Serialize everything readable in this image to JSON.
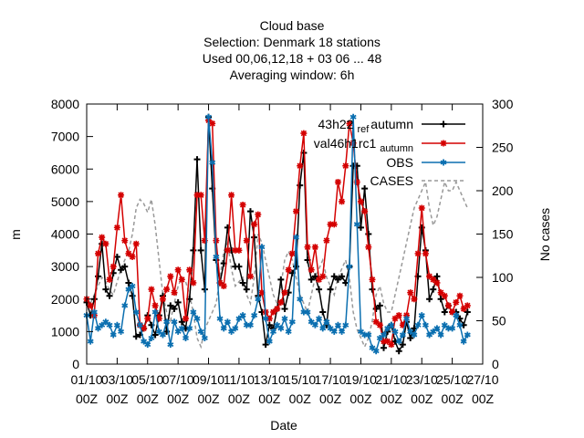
{
  "chart_data": {
    "type": "line",
    "title_lines": [
      "Cloud base",
      "Selection: Denmark      18 stations",
      "Used  00,06,12,18  + 03 06 ... 48",
      "Averaging window:  6h"
    ],
    "xlabel": "Date",
    "ylabel": "m",
    "y2label": "No cases",
    "xlim": [
      0,
      26
    ],
    "ylim": [
      0,
      8000
    ],
    "y2lim": [
      0,
      300
    ],
    "x_ticks": [
      {
        "x": 0,
        "l1": "01/10",
        "l2": "00Z"
      },
      {
        "x": 2,
        "l1": "03/10",
        "l2": "00Z"
      },
      {
        "x": 4,
        "l1": "05/10",
        "l2": "00Z"
      },
      {
        "x": 6,
        "l1": "07/10",
        "l2": "00Z"
      },
      {
        "x": 8,
        "l1": "09/10",
        "l2": "00Z"
      },
      {
        "x": 10,
        "l1": "11/10",
        "l2": "00Z"
      },
      {
        "x": 12,
        "l1": "13/10",
        "l2": "00Z"
      },
      {
        "x": 14,
        "l1": "15/10",
        "l2": "00Z"
      },
      {
        "x": 16,
        "l1": "17/10",
        "l2": "00Z"
      },
      {
        "x": 18,
        "l1": "19/10",
        "l2": "00Z"
      },
      {
        "x": 20,
        "l1": "21/10",
        "l2": "00Z"
      },
      {
        "x": 22,
        "l1": "23/10",
        "l2": "00Z"
      },
      {
        "x": 24,
        "l1": "25/10",
        "l2": "00Z"
      },
      {
        "x": 26,
        "l1": "27/10",
        "l2": "00Z"
      }
    ],
    "y_ticks": [
      0,
      1000,
      2000,
      3000,
      4000,
      5000,
      6000,
      7000,
      8000
    ],
    "y2_ticks": [
      0,
      50,
      100,
      150,
      200,
      250,
      300
    ],
    "legend_position": "top-right",
    "series": [
      {
        "name": "43h22_ref_autumn",
        "legend_main": "43h22",
        "legend_sub": "ref",
        "legend_tail": "autumn",
        "color": "#000000",
        "marker": "plus",
        "axis": "y",
        "x": [
          0.0,
          0.25,
          0.5,
          0.75,
          1.0,
          1.25,
          1.5,
          1.75,
          2.0,
          2.25,
          2.5,
          2.75,
          3.0,
          3.25,
          3.5,
          3.75,
          4.0,
          4.25,
          4.5,
          4.75,
          5.0,
          5.25,
          5.5,
          5.75,
          6.0,
          6.25,
          6.5,
          6.75,
          7.0,
          7.25,
          7.5,
          7.75,
          8.0,
          8.25,
          8.5,
          8.75,
          9.0,
          9.25,
          9.5,
          9.75,
          10.0,
          10.25,
          10.5,
          10.75,
          11.0,
          11.25,
          11.5,
          11.75,
          12.0,
          12.25,
          12.5,
          12.75,
          13.0,
          13.25,
          13.5,
          13.75,
          14.0,
          14.25,
          14.5,
          14.75,
          15.0,
          15.25,
          15.5,
          15.75,
          16.0,
          16.25,
          16.5,
          16.75,
          17.0,
          17.25,
          17.5,
          17.75,
          18.0,
          18.25,
          18.5,
          18.75,
          19.0,
          19.25,
          19.5,
          19.75,
          20.0,
          20.25,
          20.5,
          20.75,
          21.0,
          21.25,
          21.5,
          21.75,
          22.0,
          22.25,
          22.5,
          22.75,
          23.0,
          23.25,
          23.5,
          23.75,
          24.0,
          24.25,
          24.5,
          24.75,
          25.0
        ],
        "y": [
          1900,
          1500,
          2000,
          2700,
          3700,
          2300,
          2100,
          2800,
          3300,
          2900,
          3000,
          2500,
          2100,
          850,
          900,
          1100,
          1500,
          1200,
          900,
          1500,
          2100,
          1000,
          1800,
          1700,
          1900,
          1300,
          1100,
          2000,
          3500,
          6300,
          3500,
          2300,
          7600,
          5400,
          3200,
          2500,
          3100,
          4200,
          3500,
          3000,
          3000,
          2500,
          2300,
          4700,
          3900,
          2100,
          1600,
          600,
          1200,
          1100,
          1700,
          2600,
          1700,
          2200,
          2800,
          3000,
          5500,
          6500,
          3200,
          2600,
          2700,
          2300,
          1600,
          1200,
          2300,
          2700,
          2600,
          2700,
          2500,
          3000,
          6100,
          6100,
          4200,
          5400,
          4000,
          2300,
          1700,
          1800,
          500,
          1000,
          1200,
          700,
          400,
          600,
          1300,
          800,
          1100,
          2700,
          4200,
          3500,
          2000,
          2300,
          2700,
          2000,
          1600,
          1800,
          1600,
          1600,
          1400,
          1200,
          1600
        ],
        "y_override_note": ""
      },
      {
        "name": "val46h1rc1_autumn",
        "legend_main": "val46h1rc1",
        "legend_sub": "",
        "legend_tail": "autumn",
        "color": "#d40000",
        "marker": "star",
        "axis": "y",
        "x": [
          0.0,
          0.25,
          0.5,
          0.75,
          1.0,
          1.25,
          1.5,
          1.75,
          2.0,
          2.25,
          2.5,
          2.75,
          3.0,
          3.25,
          3.5,
          3.75,
          4.0,
          4.25,
          4.5,
          4.75,
          5.0,
          5.25,
          5.5,
          5.75,
          6.0,
          6.25,
          6.5,
          6.75,
          7.0,
          7.25,
          7.5,
          7.75,
          8.0,
          8.25,
          8.5,
          8.75,
          9.0,
          9.25,
          9.5,
          9.75,
          10.0,
          10.25,
          10.5,
          10.75,
          11.0,
          11.25,
          11.5,
          11.75,
          12.0,
          12.25,
          12.5,
          12.75,
          13.0,
          13.25,
          13.5,
          13.75,
          14.0,
          14.25,
          14.5,
          14.75,
          15.0,
          15.25,
          15.5,
          15.75,
          16.0,
          16.25,
          16.5,
          16.75,
          17.0,
          17.25,
          17.5,
          17.75,
          18.0,
          18.25,
          18.5,
          18.75,
          19.0,
          19.25,
          19.5,
          19.75,
          20.0,
          20.25,
          20.5,
          20.75,
          21.0,
          21.25,
          21.5,
          21.75,
          22.0,
          22.25,
          22.5,
          22.75,
          23.0,
          23.25,
          23.5,
          23.75,
          24.0,
          24.25,
          24.5,
          24.75,
          25.0
        ],
        "y": [
          2000,
          1800,
          1500,
          3400,
          3900,
          3700,
          2600,
          3000,
          4200,
          5200,
          3800,
          3400,
          3300,
          3700,
          1200,
          1100,
          1400,
          2300,
          1800,
          1400,
          2000,
          2300,
          2700,
          2200,
          2900,
          2600,
          1400,
          2900,
          2500,
          5200,
          5200,
          3800,
          7500,
          7400,
          3800,
          2500,
          2400,
          3500,
          5200,
          3500,
          3500,
          4900,
          3800,
          2700,
          4300,
          4600,
          2200,
          1600,
          1400,
          1600,
          1700,
          1900,
          2200,
          2900,
          3400,
          4700,
          6100,
          7100,
          3600,
          2900,
          3600,
          2600,
          2700,
          3800,
          4300,
          4300,
          5600,
          5000,
          6100,
          7400,
          6800,
          5600,
          5000,
          4700,
          3600,
          2600,
          1300,
          1200,
          700,
          700,
          600,
          1400,
          1500,
          1200,
          1500,
          2200,
          2000,
          3400,
          4800,
          3400,
          2700,
          2600,
          2500,
          2200,
          2100,
          1800,
          1600,
          1900,
          2100,
          1700,
          1800
        ],
        "y_override_note": ""
      },
      {
        "name": "OBS",
        "legend_main": "OBS",
        "legend_sub": "",
        "legend_tail": "",
        "color": "#0b6fb0",
        "marker": "asterisk",
        "axis": "y",
        "x": [
          0.0,
          0.25,
          0.5,
          0.75,
          1.0,
          1.25,
          1.5,
          1.75,
          2.0,
          2.25,
          2.5,
          2.75,
          3.0,
          3.25,
          3.5,
          3.75,
          4.0,
          4.25,
          4.5,
          4.75,
          5.0,
          5.25,
          5.5,
          5.75,
          6.0,
          6.25,
          6.5,
          6.75,
          7.0,
          7.25,
          7.5,
          7.75,
          8.0,
          8.25,
          8.5,
          8.75,
          9.0,
          9.25,
          9.5,
          9.75,
          10.0,
          10.25,
          10.5,
          10.75,
          11.0,
          11.25,
          11.5,
          11.75,
          12.0,
          12.25,
          12.5,
          12.75,
          13.0,
          13.25,
          13.5,
          13.75,
          14.0,
          14.25,
          14.5,
          14.75,
          15.0,
          15.25,
          15.5,
          15.75,
          16.0,
          16.25,
          16.5,
          16.75,
          17.0,
          17.25,
          17.5,
          17.75,
          18.0,
          18.25,
          18.5,
          18.75,
          19.0,
          19.25,
          19.5,
          19.75,
          20.0,
          20.25,
          20.5,
          20.75,
          21.0,
          21.25,
          21.5,
          21.75,
          22.0,
          22.25,
          22.5,
          22.75,
          23.0,
          23.25,
          23.5,
          23.75,
          24.0,
          24.25,
          24.5,
          24.75,
          25.0
        ],
        "y": [
          1500,
          700,
          1600,
          1100,
          1200,
          1300,
          1200,
          900,
          1200,
          1000,
          1800,
          2300,
          2400,
          1600,
          1200,
          700,
          600,
          800,
          1600,
          1000,
          900,
          1300,
          600,
          1300,
          1000,
          1100,
          800,
          1100,
          1600,
          1400,
          1000,
          800,
          7600,
          6200,
          3300,
          1400,
          1100,
          1300,
          1000,
          1100,
          1400,
          1500,
          1200,
          1200,
          1500,
          2000,
          3600,
          1400,
          700,
          1000,
          1200,
          1100,
          1400,
          1000,
          1300,
          3900,
          2000,
          1600,
          1600,
          1300,
          1200,
          1400,
          1100,
          1300,
          1100,
          1000,
          1200,
          1000,
          1200,
          3000,
          7600,
          4300,
          1000,
          900,
          900,
          500,
          400,
          800,
          900,
          1100,
          1200,
          1000,
          700,
          900,
          1400,
          1000,
          900,
          1200,
          1500,
          1200,
          900,
          1000,
          1100,
          900,
          1200,
          1100,
          1100,
          1500,
          1200,
          700,
          900
        ],
        "y_override_note": ""
      },
      {
        "name": "CASES",
        "legend_main": "CASES",
        "legend_sub": "",
        "legend_tail": "",
        "color": "#999999",
        "marker": "none",
        "dashed": true,
        "axis": "y2",
        "x": [
          0.0,
          0.25,
          0.5,
          0.75,
          1.0,
          1.25,
          1.5,
          1.75,
          2.0,
          2.25,
          2.5,
          2.75,
          3.0,
          3.25,
          3.5,
          3.75,
          4.0,
          4.25,
          4.5,
          4.75,
          5.0,
          5.25,
          5.5,
          5.75,
          6.0,
          6.25,
          6.5,
          6.75,
          7.0,
          7.25,
          7.5,
          7.75,
          8.0,
          8.25,
          8.5,
          8.75,
          9.0,
          9.25,
          9.5,
          9.75,
          10.0,
          10.25,
          10.5,
          10.75,
          11.0,
          11.25,
          11.5,
          11.75,
          12.0,
          12.25,
          12.5,
          12.75,
          13.0,
          13.25,
          13.5,
          13.75,
          14.0,
          14.25,
          14.5,
          14.75,
          15.0,
          15.25,
          15.5,
          15.75,
          16.0,
          16.25,
          16.5,
          16.75,
          17.0,
          17.25,
          17.5,
          17.75,
          18.0,
          18.25,
          18.5,
          18.75,
          19.0,
          19.25,
          19.5,
          19.75,
          20.0,
          20.25,
          20.5,
          20.75,
          21.0,
          21.25,
          21.5,
          21.75,
          22.0,
          22.25,
          22.5,
          22.75,
          23.0,
          23.25,
          23.5,
          23.75,
          24.0,
          24.25,
          24.5,
          24.75,
          25.0
        ],
        "y": [
          75,
          70,
          80,
          90,
          100,
          95,
          85,
          80,
          95,
          110,
          120,
          130,
          150,
          180,
          190,
          185,
          175,
          190,
          160,
          120,
          80,
          60,
          50,
          70,
          90,
          100,
          95,
          80,
          60,
          30,
          20,
          40,
          50,
          60,
          70,
          100,
          130,
          140,
          110,
          90,
          95,
          100,
          80,
          70,
          100,
          150,
          140,
          120,
          100,
          80,
          70,
          90,
          120,
          130,
          120,
          100,
          80,
          70,
          60,
          80,
          100,
          110,
          120,
          100,
          90,
          80,
          100,
          110,
          120,
          100,
          60,
          40,
          30,
          20,
          30,
          50,
          80,
          90,
          70,
          60,
          60,
          80,
          100,
          120,
          140,
          160,
          180,
          190,
          200,
          210,
          180,
          160,
          170,
          190,
          210,
          200,
          200,
          210,
          200,
          190,
          180
        ],
        "y_override_note": ""
      }
    ]
  }
}
